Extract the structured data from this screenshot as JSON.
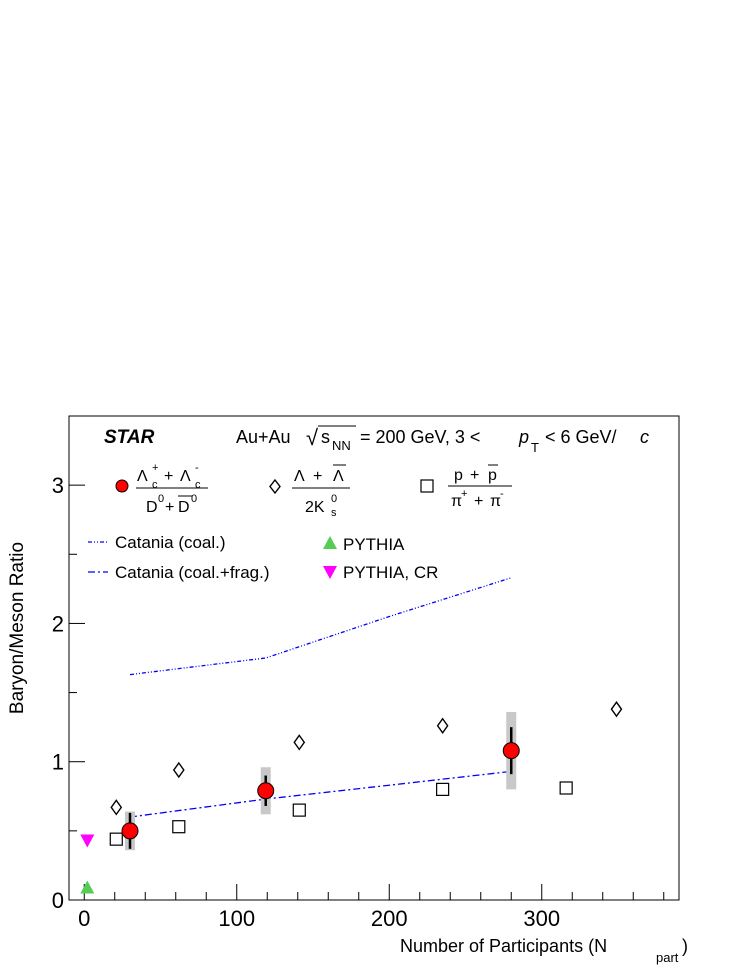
{
  "chart_data": {
    "type": "scatter",
    "experiment_label": "STAR",
    "system_label": {
      "collision": "Au+Au",
      "sqrt_sym": "√",
      "s": "s",
      "nn": "NN",
      "energy": "= 200 GeV, 3 <",
      "p": "p",
      "T": "T",
      "range_end": "< 6 GeV/",
      "c": "c"
    },
    "xlabel": "Number of Participants (N",
    "xlabel_sub": "part",
    "xlabel_close": ")",
    "ylabel": "Baryon/Meson Ratio",
    "xlim": [
      -10,
      390
    ],
    "ylim": [
      0,
      3.5
    ],
    "x_ticks": [
      0,
      100,
      200,
      300
    ],
    "x_tick_labels": [
      "0",
      "100",
      "200",
      "300"
    ],
    "y_ticks": [
      0,
      1,
      2,
      3
    ],
    "y_tick_labels": [
      "0",
      "1",
      "2",
      "3"
    ],
    "grid": false,
    "legend": {
      "lambda_c": {
        "num_a": "Λ",
        "num_a_sup": "+",
        "num_a_sub": "c",
        "plus": "+",
        "num_b": "Λ",
        "num_b_sup": "-",
        "num_b_sub": "c",
        "den_a": "D",
        "den_a_sup": "0",
        "den_plus": "+",
        "den_b": "D",
        "den_b_sup": "0"
      },
      "lambda": {
        "num_a": "Λ",
        "plus": "+",
        "num_b": "Λ",
        "den": "2K",
        "den_sup": "0",
        "den_sub": "s"
      },
      "proton": {
        "num_a": "p",
        "plus": "+",
        "num_b": "p",
        "den_a": "π",
        "den_a_sup": "+",
        "den_plus": "+",
        "den_b": "π",
        "den_b_sup": "-"
      },
      "catania_coal": "Catania (coal.)",
      "catania_coal_frag": "Catania (coal.+frag.)",
      "pythia": "PYTHIA",
      "pythia_cr": "PYTHIA, CR"
    },
    "series": [
      {
        "key": "lambda_c",
        "marker": "circle",
        "color": "#ff0000",
        "x": [
          30,
          119,
          280
        ],
        "y": [
          0.5,
          0.79,
          1.08
        ],
        "stat_err": [
          0.13,
          0.11,
          0.17
        ],
        "sys_err": [
          0.14,
          0.17,
          0.28
        ]
      },
      {
        "key": "lambda",
        "marker": "open-diamond",
        "x": [
          21,
          62,
          141,
          235,
          349
        ],
        "y": [
          0.67,
          0.94,
          1.14,
          1.26,
          1.38
        ]
      },
      {
        "key": "proton",
        "marker": "open-square",
        "x": [
          21,
          62,
          141,
          235,
          316
        ],
        "y": [
          0.44,
          0.53,
          0.65,
          0.8,
          0.81
        ]
      },
      {
        "key": "catania_coal",
        "style": "dotted",
        "color": "#0000ff",
        "x": [
          30,
          119,
          200,
          280
        ],
        "y": [
          1.63,
          1.75,
          2.05,
          2.33
        ]
      },
      {
        "key": "catania_coal_frag",
        "style": "dash-dot",
        "color": "#0000ff",
        "x": [
          30,
          119,
          200,
          280
        ],
        "y": [
          0.6,
          0.73,
          0.83,
          0.93
        ]
      },
      {
        "key": "pythia",
        "marker": "triangle-up",
        "color": "#55cc55",
        "x": [
          2
        ],
        "y": [
          0.09
        ]
      },
      {
        "key": "pythia_cr",
        "marker": "triangle-down",
        "color": "#ff00ff",
        "x": [
          2
        ],
        "y": [
          0.43
        ]
      }
    ]
  }
}
